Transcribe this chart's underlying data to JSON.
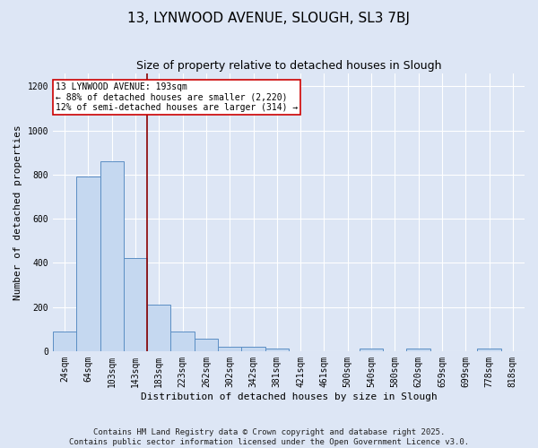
{
  "title1": "13, LYNWOOD AVENUE, SLOUGH, SL3 7BJ",
  "title2": "Size of property relative to detached houses in Slough",
  "xlabel": "Distribution of detached houses by size in Slough",
  "ylabel": "Number of detached properties",
  "categories": [
    "24sqm",
    "64sqm",
    "103sqm",
    "143sqm",
    "183sqm",
    "223sqm",
    "262sqm",
    "302sqm",
    "342sqm",
    "381sqm",
    "421sqm",
    "461sqm",
    "500sqm",
    "540sqm",
    "580sqm",
    "620sqm",
    "659sqm",
    "699sqm",
    "778sqm",
    "818sqm"
  ],
  "values": [
    90,
    790,
    860,
    420,
    210,
    90,
    55,
    20,
    20,
    10,
    0,
    0,
    0,
    10,
    0,
    10,
    0,
    0,
    10,
    0
  ],
  "bar_color": "#c5d8f0",
  "bar_edge_color": "#5b8ec4",
  "bg_color": "#dde6f5",
  "grid_color": "#ffffff",
  "vline_color": "#8b0000",
  "annotation_text": "13 LYNWOOD AVENUE: 193sqm\n← 88% of detached houses are smaller (2,220)\n12% of semi-detached houses are larger (314) →",
  "annotation_box_color": "white",
  "annotation_box_edge": "#cc0000",
  "ylim": [
    0,
    1260
  ],
  "yticks": [
    0,
    200,
    400,
    600,
    800,
    1000,
    1200
  ],
  "footnote1": "Contains HM Land Registry data © Crown copyright and database right 2025.",
  "footnote2": "Contains public sector information licensed under the Open Government Licence v3.0.",
  "title1_fontsize": 11,
  "title2_fontsize": 9,
  "xlabel_fontsize": 8,
  "ylabel_fontsize": 8,
  "annotation_fontsize": 7,
  "tick_fontsize": 7,
  "footnote_fontsize": 6.5,
  "vline_x": 3.5
}
